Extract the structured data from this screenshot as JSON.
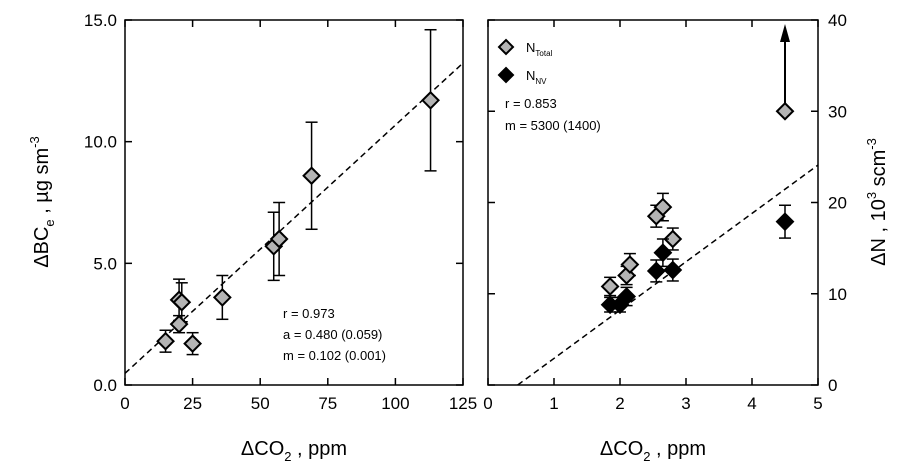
{
  "chart_data": [
    {
      "type": "scatter",
      "x_label": {
        "main": "ΔCO",
        "sub": "2",
        "rest": " ,  ppm"
      },
      "y_label": {
        "main": "ΔBC",
        "sub": "e",
        "rest": " , µg sm",
        "sup": "-3"
      },
      "xlim": [
        0,
        125
      ],
      "xticks": [
        0,
        25,
        50,
        75,
        100,
        125
      ],
      "ylim": [
        0,
        15
      ],
      "yticks": [
        {
          "value": 0,
          "label": "0.0"
        },
        {
          "value": 5,
          "label": "5.0"
        },
        {
          "value": 10,
          "label": "10.0"
        },
        {
          "value": 15,
          "label": "15.0"
        }
      ],
      "y_side": "left",
      "series": [
        {
          "color": "#b4b4b4",
          "x": [
            15,
            20,
            20,
            21,
            25,
            36,
            55,
            57,
            69,
            113
          ],
          "values": [
            1.8,
            2.5,
            3.5,
            3.4,
            1.7,
            3.6,
            5.7,
            6.0,
            8.6,
            11.7
          ],
          "errors": [
            0.45,
            0.35,
            0.85,
            0.8,
            0.45,
            0.9,
            1.4,
            1.5,
            2.2,
            2.9
          ]
        }
      ],
      "fit": {
        "x": [
          0,
          125
        ],
        "y": [
          0.48,
          13.23
        ]
      },
      "annotations": [
        "r = 0.973",
        "a = 0.480 (0.059)",
        "m = 0.102 (0.001)"
      ]
    },
    {
      "type": "scatter",
      "x_label": {
        "main": "ΔCO",
        "sub": "2",
        "rest": " ,  ppm"
      },
      "y_label": {
        "main": "ΔN ,  10",
        "sup": "3",
        "rest": "  scm",
        "sup2": "-3"
      },
      "xlim": [
        0,
        5
      ],
      "xticks": [
        0,
        1,
        2,
        3,
        4,
        5
      ],
      "ylim": [
        0,
        40
      ],
      "yticks": [
        0,
        10,
        20,
        30,
        40
      ],
      "y_side": "right",
      "series": [
        {
          "name": "N",
          "name_sub": "Total",
          "color": "#b4b4b4",
          "x": [
            1.85,
            2.1,
            2.15,
            2.55,
            2.65,
            2.8,
            4.5
          ],
          "values": [
            10.8,
            12.0,
            13.2,
            18.5,
            19.5,
            16.0,
            30
          ],
          "errors": [
            1.0,
            1.0,
            1.2,
            1.2,
            1.5,
            1.2,
            null
          ]
        },
        {
          "name": "N",
          "name_sub": "NV",
          "color": "#000000",
          "x": [
            1.85,
            2.0,
            2.1,
            2.55,
            2.65,
            2.8,
            4.5
          ],
          "values": [
            8.8,
            8.8,
            9.7,
            12.5,
            14.5,
            12.6,
            17.9
          ],
          "errors": [
            0.8,
            0.8,
            1.0,
            1.2,
            1.5,
            1.2,
            1.8
          ]
        }
      ],
      "fit": {
        "x": [
          0.45,
          5
        ],
        "y": [
          0,
          24.1
        ]
      },
      "annotations": [
        "r = 0.853",
        "m = 5300 (1400)"
      ]
    }
  ]
}
